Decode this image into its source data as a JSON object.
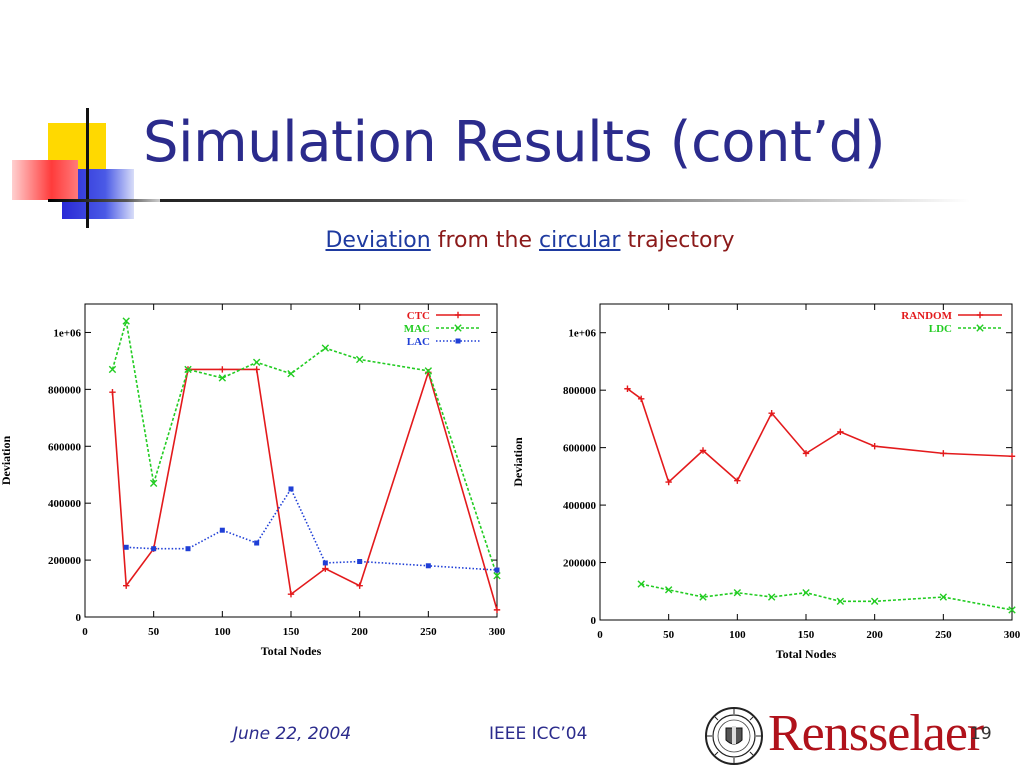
{
  "slide": {
    "title": "Simulation Results (cont’d)",
    "subtitle": {
      "w1": "Deviation",
      "w2": "from the",
      "w3": "circular",
      "w4": "trajectory"
    },
    "footer": {
      "date": "June 22, 2004",
      "conference": "IEEE ICC’04",
      "page": "19",
      "brand": "Rensselaer"
    }
  },
  "chart_data": [
    {
      "type": "line",
      "xlabel": "Total Nodes",
      "ylabel": "Deviation",
      "xlim": [
        0,
        300
      ],
      "ylim": [
        0,
        1100000
      ],
      "xticks": [
        "0",
        "50",
        "100",
        "150",
        "200",
        "250",
        "300"
      ],
      "yticks": [
        "0",
        "200000",
        "400000",
        "600000",
        "800000",
        "1e+06"
      ],
      "xtick_values": [
        0,
        50,
        100,
        150,
        200,
        250,
        300
      ],
      "ytick_values": [
        0,
        200000,
        400000,
        600000,
        800000,
        1000000
      ],
      "grid": false,
      "legend": "top-right",
      "series": [
        {
          "name": "CTC",
          "color": "#e31a1c",
          "marker": "plus",
          "x": [
            20,
            30,
            50,
            75,
            100,
            125,
            150,
            175,
            200,
            250,
            300
          ],
          "values": [
            790000,
            110000,
            240000,
            870000,
            870000,
            870000,
            80000,
            170000,
            110000,
            860000,
            25000
          ]
        },
        {
          "name": "MAC",
          "color": "#22cc22",
          "marker": "cross",
          "x": [
            20,
            30,
            50,
            75,
            100,
            125,
            150,
            175,
            200,
            250,
            300
          ],
          "values": [
            870000,
            1040000,
            470000,
            870000,
            840000,
            895000,
            855000,
            945000,
            905000,
            865000,
            145000
          ]
        },
        {
          "name": "LAC",
          "color": "#1f3fd6",
          "marker": "square",
          "x": [
            30,
            50,
            75,
            100,
            125,
            150,
            175,
            200,
            250,
            300
          ],
          "values": [
            245000,
            240000,
            240000,
            305000,
            260000,
            450000,
            190000,
            195000,
            180000,
            165000
          ]
        }
      ]
    },
    {
      "type": "line",
      "xlabel": "Total Nodes",
      "ylabel": "Deviation",
      "xlim": [
        0,
        300
      ],
      "ylim": [
        0,
        1100000
      ],
      "xticks": [
        "0",
        "50",
        "100",
        "150",
        "200",
        "250",
        "300"
      ],
      "yticks": [
        "0",
        "200000",
        "400000",
        "600000",
        "800000",
        "1e+06"
      ],
      "xtick_values": [
        0,
        50,
        100,
        150,
        200,
        250,
        300
      ],
      "ytick_values": [
        0,
        200000,
        400000,
        600000,
        800000,
        1000000
      ],
      "grid": false,
      "legend": "top-right",
      "series": [
        {
          "name": "RANDOM",
          "color": "#e31a1c",
          "marker": "plus",
          "x": [
            20,
            30,
            50,
            75,
            100,
            125,
            150,
            175,
            200,
            250,
            300
          ],
          "values": [
            805000,
            770000,
            480000,
            590000,
            485000,
            720000,
            580000,
            655000,
            605000,
            580000,
            570000
          ]
        },
        {
          "name": "LDC",
          "color": "#22cc22",
          "marker": "cross",
          "x": [
            30,
            50,
            75,
            100,
            125,
            150,
            175,
            200,
            250,
            300
          ],
          "values": [
            125000,
            105000,
            80000,
            95000,
            80000,
            95000,
            65000,
            65000,
            80000,
            35000
          ]
        }
      ]
    }
  ]
}
